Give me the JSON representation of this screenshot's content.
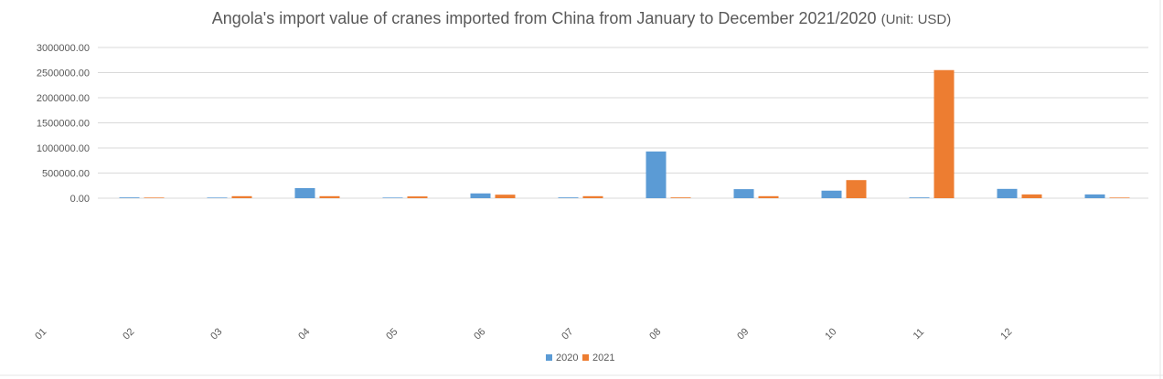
{
  "chart_data": {
    "type": "bar",
    "title": "Angola's import value of cranes imported from China from January to December 2021/2020",
    "title_unit": "(Unit: USD)",
    "xlabel": "",
    "ylabel": "",
    "ylim": [
      0,
      3000000
    ],
    "y_ticks": [
      "0.00",
      "500000.00",
      "1000000.00",
      "1500000.00",
      "2000000.00",
      "2500000.00",
      "3000000.00"
    ],
    "x_tick_labels": [
      "01",
      "02",
      "03",
      "04",
      "05",
      "06",
      "07",
      "08",
      "09",
      "10",
      "11",
      "12"
    ],
    "series": [
      {
        "name": "2020",
        "color": "#5b9bd5",
        "values": [
          15000,
          12000,
          200000,
          12000,
          95000,
          15000,
          930000,
          180000,
          150000,
          15000,
          185000,
          75000
        ]
      },
      {
        "name": "2021",
        "color": "#ed7d31",
        "values": [
          12000,
          40000,
          40000,
          35000,
          70000,
          40000,
          15000,
          40000,
          360000,
          2550000,
          75000,
          12000
        ]
      }
    ],
    "grid": true,
    "legend_position": "bottom"
  }
}
